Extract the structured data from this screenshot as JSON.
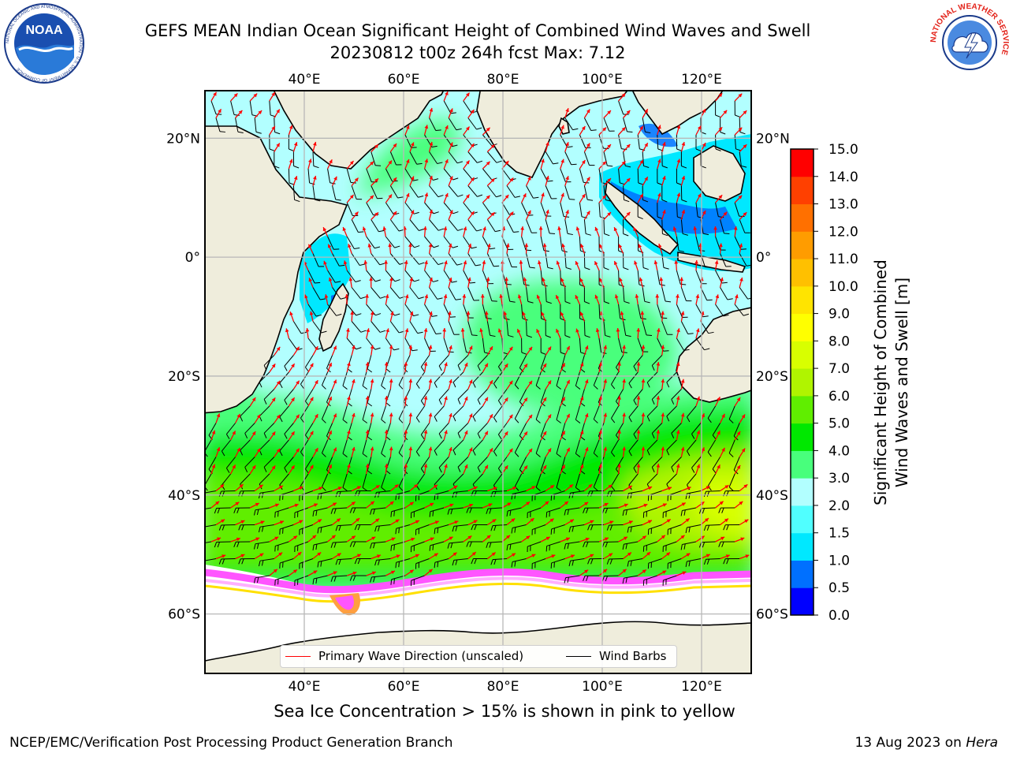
{
  "header": {
    "title_line1": "GEFS MEAN Indian Ocean Significant Height of Combined Wind Waves and Swell",
    "title_line2": "20230812 t00z 264h fcst   Max: 7.12"
  },
  "logos": {
    "left": {
      "name": "noaa-logo",
      "text": "NOAA",
      "ring_text": "NATIONAL OCEANIC AND ATMOSPHERIC ADMINISTRATION · U.S. DEPARTMENT OF COMMERCE"
    },
    "right": {
      "name": "nws-logo",
      "ring_text": "NATIONAL WEATHER SERVICE"
    }
  },
  "map": {
    "lon_range": [
      20,
      130
    ],
    "lat_range": [
      -70,
      28
    ],
    "lon_ticks": [
      {
        "value": 40,
        "label": "40°E"
      },
      {
        "value": 60,
        "label": "60°E"
      },
      {
        "value": 80,
        "label": "80°E"
      },
      {
        "value": 100,
        "label": "100°E"
      },
      {
        "value": 120,
        "label": "120°E"
      }
    ],
    "lat_ticks": [
      {
        "value": 20,
        "label": "20°N"
      },
      {
        "value": 0,
        "label": "0°"
      },
      {
        "value": -20,
        "label": "20°S"
      },
      {
        "value": -40,
        "label": "40°S"
      },
      {
        "value": -60,
        "label": "60°S"
      }
    ],
    "gridlines": true,
    "land_color": "#efeddc",
    "ice_color": "#ffffff",
    "max_value": 7.12
  },
  "colorbar": {
    "title_line1": "Significant Height of Combined",
    "title_line2": "Wind Waves and Swell [m]",
    "levels": [
      "0.0",
      "0.5",
      "1.0",
      "1.5",
      "2.0",
      "3.0",
      "4.0",
      "5.0",
      "6.0",
      "7.0",
      "8.0",
      "9.0",
      "10.0",
      "11.0",
      "12.0",
      "13.0",
      "14.0",
      "15.0"
    ],
    "colors": [
      "#0000ff",
      "#0070ff",
      "#00e8ff",
      "#50ffff",
      "#b2ffff",
      "#48ff7c",
      "#00e800",
      "#60ee00",
      "#b0f400",
      "#d8ff00",
      "#ffff00",
      "#ffe400",
      "#ffc000",
      "#ff9c00",
      "#ff7000",
      "#ff4000",
      "#ff0000"
    ]
  },
  "legend": {
    "wave_label": "Primary Wave Direction (unscaled)",
    "wave_color": "#ff0000",
    "wind_label": "Wind Barbs",
    "wind_color": "#000000"
  },
  "notes": {
    "sea_ice": "Sea Ice Concentration > 15% is shown in pink to yellow"
  },
  "footer": {
    "left": "NCEP/EMC/Verification Post Processing Product Generation Branch",
    "date": "13 Aug 2023 on ",
    "host": "Hera"
  }
}
